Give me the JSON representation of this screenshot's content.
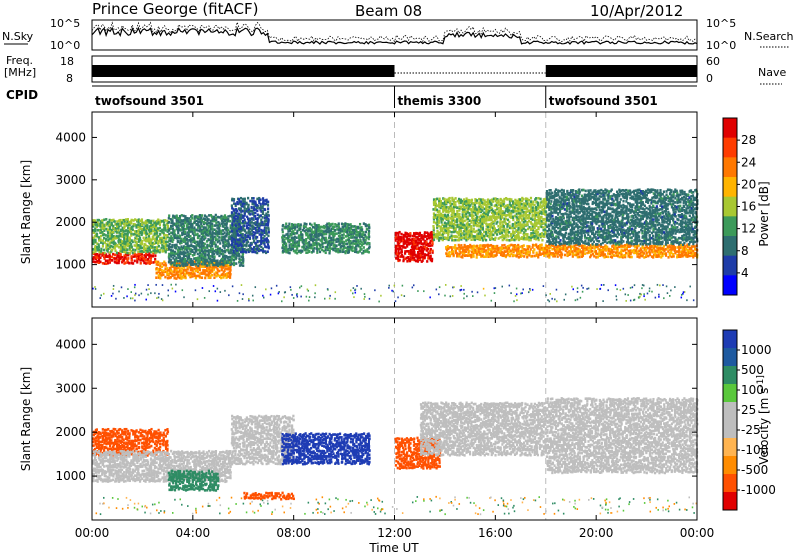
{
  "header": {
    "station": "Prince George (fitACF)",
    "beam": "Beam 08",
    "date": "10/Apr/2012"
  },
  "summary_panels": {
    "nsky_label": "N.Sky",
    "nsky_left_ticks": [
      "10^5",
      "10^0"
    ],
    "nsky_right_ticks": [
      "10^5",
      "10^0"
    ],
    "nsearch_label": "N.Search",
    "freq_label_top": "Freq.",
    "freq_label_bottom": "[MHz]",
    "freq_ticks": [
      "18",
      "8"
    ],
    "nave_ticks": [
      "60",
      "0"
    ],
    "nave_label": "Nave",
    "cpid_label": "CPID"
  },
  "cpid_segments": [
    {
      "name": "twofsound 3501",
      "start_hour": 0,
      "end_hour": 12
    },
    {
      "name": "themis 3300",
      "start_hour": 12,
      "end_hour": 18
    },
    {
      "name": "twofsound 3501",
      "start_hour": 18,
      "end_hour": 24
    }
  ],
  "x_axis": {
    "label": "Time UT",
    "ticks": [
      "00:00",
      "04:00",
      "08:00",
      "12:00",
      "16:00",
      "20:00",
      "00:00"
    ],
    "tick_hours": [
      0,
      4,
      8,
      12,
      16,
      20,
      24
    ]
  },
  "colors": {
    "power": [
      "#0000ff",
      "#1e3ca8",
      "#2e6e70",
      "#3c9a5a",
      "#a8c832",
      "#ffb400",
      "#ff7800",
      "#ff3c00",
      "#e00000"
    ],
    "velocity": [
      "#e00000",
      "#ff5000",
      "#ff8c00",
      "#ffb450",
      "#bebebe",
      "#bebebe",
      "#5ac83c",
      "#2e8c64",
      "#1e5aa0",
      "#1e3cb4"
    ]
  },
  "chart_data": [
    {
      "type": "heatmap",
      "title": "",
      "xlabel": "",
      "ylabel": "Slant Range [km]",
      "xlim": [
        0,
        24
      ],
      "ylim": [
        0,
        4600
      ],
      "yticks": [
        1000,
        2000,
        3000,
        4000
      ],
      "yticklabels": [
        "1000",
        "2000",
        "3000",
        "4000"
      ],
      "colorbar": {
        "label": "Power [dB]",
        "ticks": [
          "4",
          "8",
          "12",
          "16",
          "20",
          "24",
          "28"
        ],
        "range": [
          0,
          32
        ]
      },
      "bands": [
        {
          "t0": 0.0,
          "t1": 2.5,
          "r0": 1050,
          "r1": 1300,
          "level": 29
        },
        {
          "t0": 0.0,
          "t1": 3.0,
          "r0": 1300,
          "r1": 2100,
          "level": 14
        },
        {
          "t0": 2.5,
          "t1": 5.5,
          "r0": 700,
          "r1": 1100,
          "level": 22
        },
        {
          "t0": 3.0,
          "t1": 6.0,
          "r0": 1000,
          "r1": 2200,
          "level": 10
        },
        {
          "t0": 5.5,
          "t1": 7.0,
          "r0": 1300,
          "r1": 2600,
          "level": 7
        },
        {
          "t0": 7.5,
          "t1": 11.0,
          "r0": 1300,
          "r1": 2000,
          "level": 11
        },
        {
          "t0": 12.0,
          "t1": 13.5,
          "r0": 1100,
          "r1": 1800,
          "level": 30
        },
        {
          "t0": 13.5,
          "t1": 18.0,
          "r0": 1600,
          "r1": 2600,
          "level": 15
        },
        {
          "t0": 14.0,
          "t1": 24.0,
          "r0": 1200,
          "r1": 1500,
          "level": 22
        },
        {
          "t0": 18.0,
          "t1": 24.0,
          "r0": 1500,
          "r1": 2800,
          "level": 9
        }
      ]
    },
    {
      "type": "heatmap",
      "title": "",
      "xlabel": "Time UT",
      "ylabel": "Slant Range [km]",
      "xlim": [
        0,
        24
      ],
      "ylim": [
        0,
        4600
      ],
      "yticks": [
        1000,
        2000,
        3000,
        4000
      ],
      "yticklabels": [
        "1000",
        "2000",
        "3000",
        "4000"
      ],
      "colorbar": {
        "label": "Velocity [m s^-1]",
        "ticks": [
          "1000",
          "500",
          "100",
          "25",
          "-25",
          "-100",
          "-500",
          "-1000"
        ],
        "range": [
          -1000,
          1000
        ]
      },
      "bands": [
        {
          "t0": 0.0,
          "t1": 3.0,
          "r0": 1500,
          "r1": 2100,
          "level": -300
        },
        {
          "t0": 0.0,
          "t1": 5.5,
          "r0": 900,
          "r1": 1600,
          "level": 0
        },
        {
          "t0": 3.0,
          "t1": 5.0,
          "r0": 700,
          "r1": 1150,
          "level": 150
        },
        {
          "t0": 5.5,
          "t1": 8.0,
          "r0": 1300,
          "r1": 2400,
          "level": 0
        },
        {
          "t0": 7.5,
          "t1": 11.0,
          "r0": 1300,
          "r1": 2000,
          "level": 600
        },
        {
          "t0": 6.0,
          "t1": 8.0,
          "r0": 500,
          "r1": 650,
          "level": -300
        },
        {
          "t0": 12.0,
          "t1": 13.8,
          "r0": 1200,
          "r1": 1900,
          "level": -350
        },
        {
          "t0": 13.0,
          "t1": 18.0,
          "r0": 1500,
          "r1": 2700,
          "level": 0
        },
        {
          "t0": 18.0,
          "t1": 24.0,
          "r0": 1100,
          "r1": 2800,
          "level": 0
        }
      ]
    }
  ]
}
